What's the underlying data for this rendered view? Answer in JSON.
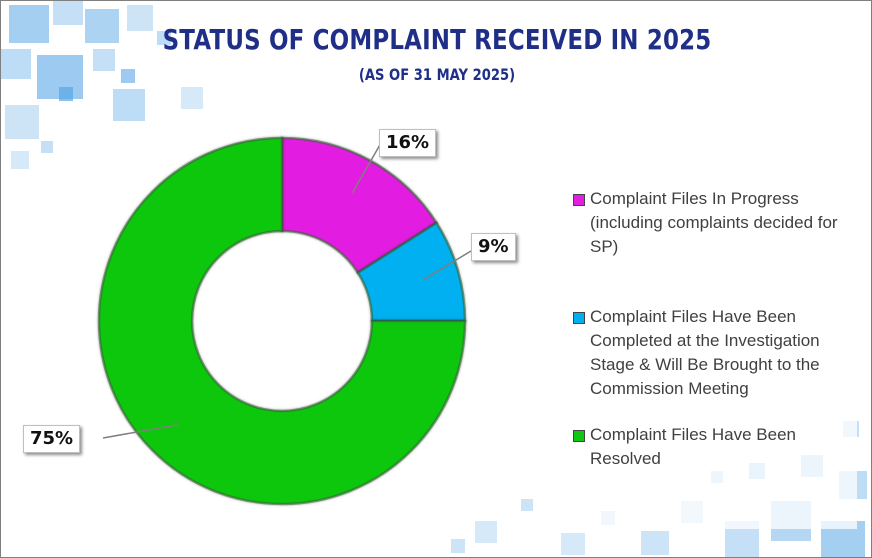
{
  "colors": {
    "in_progress": "#e21fe0",
    "completed_investigation": "#00b0f0",
    "resolved": "#11c711",
    "title": "#1f2f87"
  },
  "chart_data": {
    "type": "pie",
    "title": "STATUS OF COMPLAINT RECEIVED IN 2025",
    "subtitle": "(AS OF 31 MAY 2025)",
    "legend_position": "right",
    "slices": [
      {
        "label": "Complaint Files In Progress (including complaints decided for SP)",
        "value": 16,
        "data_label": "16%"
      },
      {
        "label": "Complaint Files Have Been Completed at the Investigation Stage & Will Be Brought to the Commission Meeting",
        "value": 9,
        "data_label": "9%"
      },
      {
        "label": "Complaint Files Have Been Resolved",
        "value": 75,
        "data_label": "75%"
      }
    ]
  }
}
